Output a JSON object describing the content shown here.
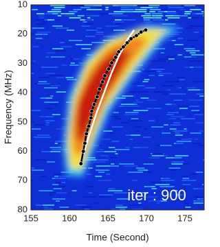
{
  "chart_data": {
    "type": "line",
    "x_label": "Time (Second)",
    "y_label": "Frequency (MHz)",
    "annotation": "iter : 900",
    "xlim": [
      155,
      177.5
    ],
    "xticks": [
      155,
      160,
      165,
      170,
      175
    ],
    "ylim": [
      10,
      80
    ],
    "yticks": [
      10,
      20,
      30,
      40,
      50,
      60,
      70,
      80
    ],
    "y_reversed": true,
    "series": [
      {
        "color": "#ffffff",
        "marker": false,
        "x": [
          161.8,
          162.5,
          163.5,
          164.5,
          165.5,
          166.5,
          167.5,
          168.4
        ],
        "values": [
          61,
          55,
          47,
          40,
          33,
          27,
          22,
          18.6
        ]
      },
      {
        "color": "#000000",
        "marker": true,
        "x": [
          161.5,
          161.8,
          162.0,
          162.2,
          162.5,
          162.8,
          162.9,
          163.2,
          163.6,
          163.9,
          164.3,
          164.6,
          165.1,
          165.5,
          166.0,
          166.4,
          167.0,
          167.5,
          168.0,
          168.7,
          169.3,
          169.9
        ],
        "values": [
          64.2,
          60,
          57.2,
          54,
          51.4,
          48.6,
          46.3,
          44,
          41.4,
          38.8,
          36.3,
          34.2,
          31.9,
          29.8,
          27.9,
          26,
          24.4,
          23,
          21.6,
          20.5,
          19.3,
          18.6
        ]
      }
    ]
  }
}
